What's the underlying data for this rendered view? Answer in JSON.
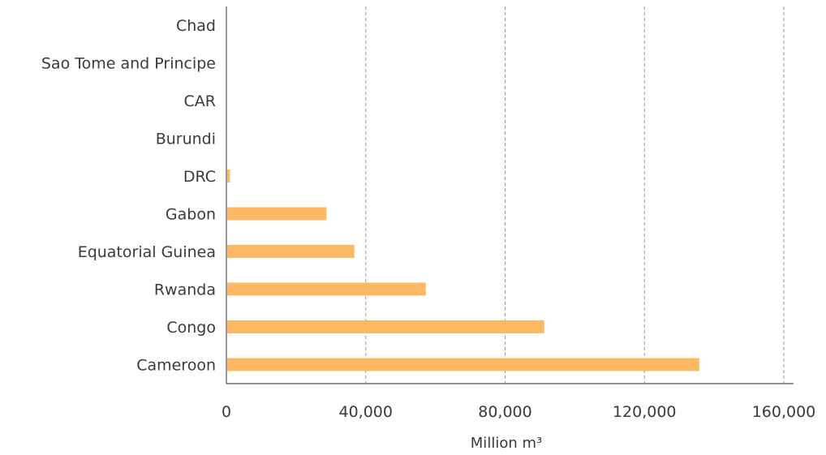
{
  "chart_data": {
    "type": "bar",
    "orientation": "horizontal",
    "categories": [
      "Chad",
      "Sao Tome and Principe",
      "CAR",
      "Burundi",
      "DRC",
      "Gabon",
      "Equatorial Guinea",
      "Rwanda",
      "Congo",
      "Cameroon"
    ],
    "values": [
      0,
      0,
      0,
      0,
      800,
      28500,
      36500,
      57000,
      91000,
      135500
    ],
    "xlim": [
      0,
      160000
    ],
    "xticks": [
      "0",
      "40,000",
      "80,000",
      "120,000",
      "160,000"
    ],
    "xtick_values": [
      0,
      40000,
      80000,
      120000,
      160000
    ],
    "xlabel": "Million m³",
    "ylabel": "",
    "grid": "vertical-dashed",
    "bar_color": "#fdb863"
  }
}
